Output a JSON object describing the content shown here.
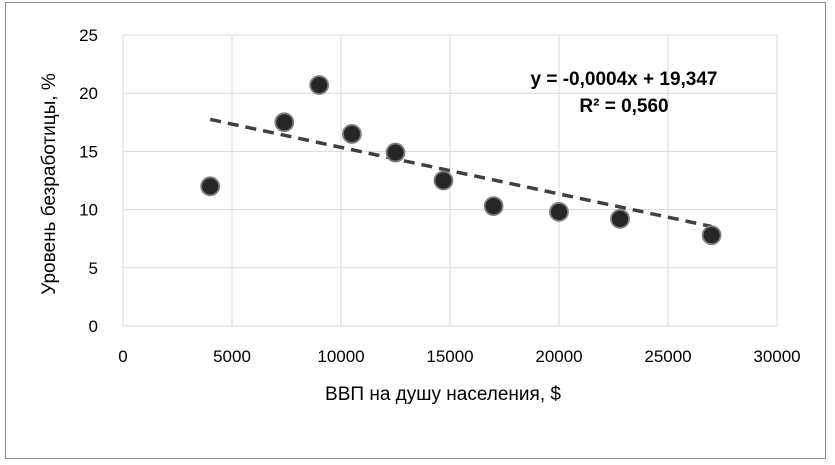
{
  "chart_data": {
    "type": "scatter",
    "title": "",
    "xlabel": "ВВП на душу населения, $",
    "ylabel": "Уровень безработицы, %",
    "xlim": [
      0,
      30000
    ],
    "ylim": [
      0,
      25
    ],
    "x_ticks": [
      "0",
      "5000",
      "10000",
      "15000",
      "20000",
      "25000",
      "30000"
    ],
    "y_ticks": [
      "0",
      "5",
      "10",
      "15",
      "20",
      "25"
    ],
    "grid": true,
    "legend": "none",
    "series": [
      {
        "points": [
          {
            "x": 4000,
            "y": 12.0
          },
          {
            "x": 7400,
            "y": 17.5
          },
          {
            "x": 9000,
            "y": 20.7
          },
          {
            "x": 10500,
            "y": 16.5
          },
          {
            "x": 12500,
            "y": 14.9
          },
          {
            "x": 14700,
            "y": 12.5
          },
          {
            "x": 17000,
            "y": 10.3
          },
          {
            "x": 20000,
            "y": 9.8
          },
          {
            "x": 22800,
            "y": 9.2
          },
          {
            "x": 27000,
            "y": 7.8
          }
        ],
        "marker_color": "#262626",
        "marker_edge_color": "#7f7f7f"
      }
    ],
    "trendline": {
      "type": "linear",
      "slope": -0.0004,
      "intercept": 19.347,
      "x_range": [
        4000,
        27000
      ],
      "equation": "y = -0,0004x + 19,347",
      "r_squared": "R² = 0,560",
      "color": "#404040",
      "dashed": true
    },
    "grid_color": "#d9d9d9"
  }
}
